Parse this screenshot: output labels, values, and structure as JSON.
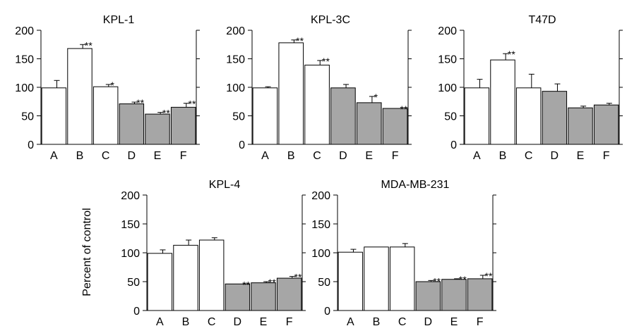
{
  "colors": {
    "white_bar": "#ffffff",
    "gray_bar": "#a6a6a6",
    "axis": "#000000"
  },
  "y_axis_label": "Percent of control",
  "chart_data": [
    {
      "type": "bar",
      "title": "KPL-1",
      "categories": [
        "A",
        "B",
        "C",
        "D",
        "E",
        "F"
      ],
      "values": [
        99,
        168,
        101,
        71,
        53,
        65
      ],
      "errors": [
        13,
        7,
        4,
        3,
        3,
        7
      ],
      "fill": [
        "white",
        "white",
        "white",
        "gray",
        "gray",
        "gray"
      ],
      "significance": [
        "",
        "**",
        "*",
        "**",
        "**",
        "**"
      ],
      "ylim": [
        0,
        200
      ],
      "yticks": [
        "0",
        "50",
        "100",
        "150",
        "200"
      ],
      "xlabel": "",
      "ylabel": ""
    },
    {
      "type": "bar",
      "title": "KPL-3C",
      "categories": [
        "A",
        "B",
        "C",
        "D",
        "E",
        "F"
      ],
      "values": [
        99,
        178,
        139,
        99,
        73,
        63
      ],
      "errors": [
        2,
        5,
        8,
        6,
        11,
        0
      ],
      "fill": [
        "white",
        "white",
        "white",
        "gray",
        "gray",
        "gray"
      ],
      "significance": [
        "",
        "**",
        "**",
        "",
        "*",
        "**"
      ],
      "ylim": [
        0,
        200
      ],
      "yticks": [
        "0",
        "50",
        "100",
        "150",
        "200"
      ],
      "xlabel": "",
      "ylabel": ""
    },
    {
      "type": "bar",
      "title": "T47D",
      "categories": [
        "A",
        "B",
        "C",
        "D",
        "E",
        "F"
      ],
      "values": [
        99,
        148,
        99,
        93,
        64,
        69
      ],
      "errors": [
        15,
        11,
        24,
        13,
        3,
        3
      ],
      "fill": [
        "white",
        "white",
        "white",
        "gray",
        "gray",
        "gray"
      ],
      "significance": [
        "",
        "**",
        "",
        "",
        "",
        ""
      ],
      "ylim": [
        0,
        200
      ],
      "yticks": [
        "0",
        "50",
        "100",
        "150",
        "200"
      ],
      "xlabel": "",
      "ylabel": ""
    },
    {
      "type": "bar",
      "title": "KPL-4",
      "categories": [
        "A",
        "B",
        "C",
        "D",
        "E",
        "F"
      ],
      "values": [
        99,
        113,
        122,
        46,
        48,
        56
      ],
      "errors": [
        6,
        9,
        4,
        0,
        2,
        3
      ],
      "fill": [
        "white",
        "white",
        "white",
        "gray",
        "gray",
        "gray"
      ],
      "significance": [
        "",
        "",
        "",
        "**",
        "**",
        "**"
      ],
      "ylim": [
        0,
        200
      ],
      "yticks": [
        "0",
        "50",
        "100",
        "150",
        "200"
      ],
      "xlabel": "",
      "ylabel": "Percent of control"
    },
    {
      "type": "bar",
      "title": "MDA-MB-231",
      "categories": [
        "A",
        "B",
        "C",
        "D",
        "E",
        "F"
      ],
      "values": [
        101,
        110,
        110,
        50,
        54,
        55
      ],
      "errors": [
        5,
        0,
        6,
        2,
        1,
        6
      ],
      "fill": [
        "white",
        "white",
        "white",
        "gray",
        "gray",
        "gray"
      ],
      "significance": [
        "",
        "",
        "",
        "**",
        "**",
        "**"
      ],
      "ylim": [
        0,
        200
      ],
      "yticks": [
        "0",
        "50",
        "100",
        "150",
        "200"
      ],
      "xlabel": "",
      "ylabel": ""
    }
  ]
}
